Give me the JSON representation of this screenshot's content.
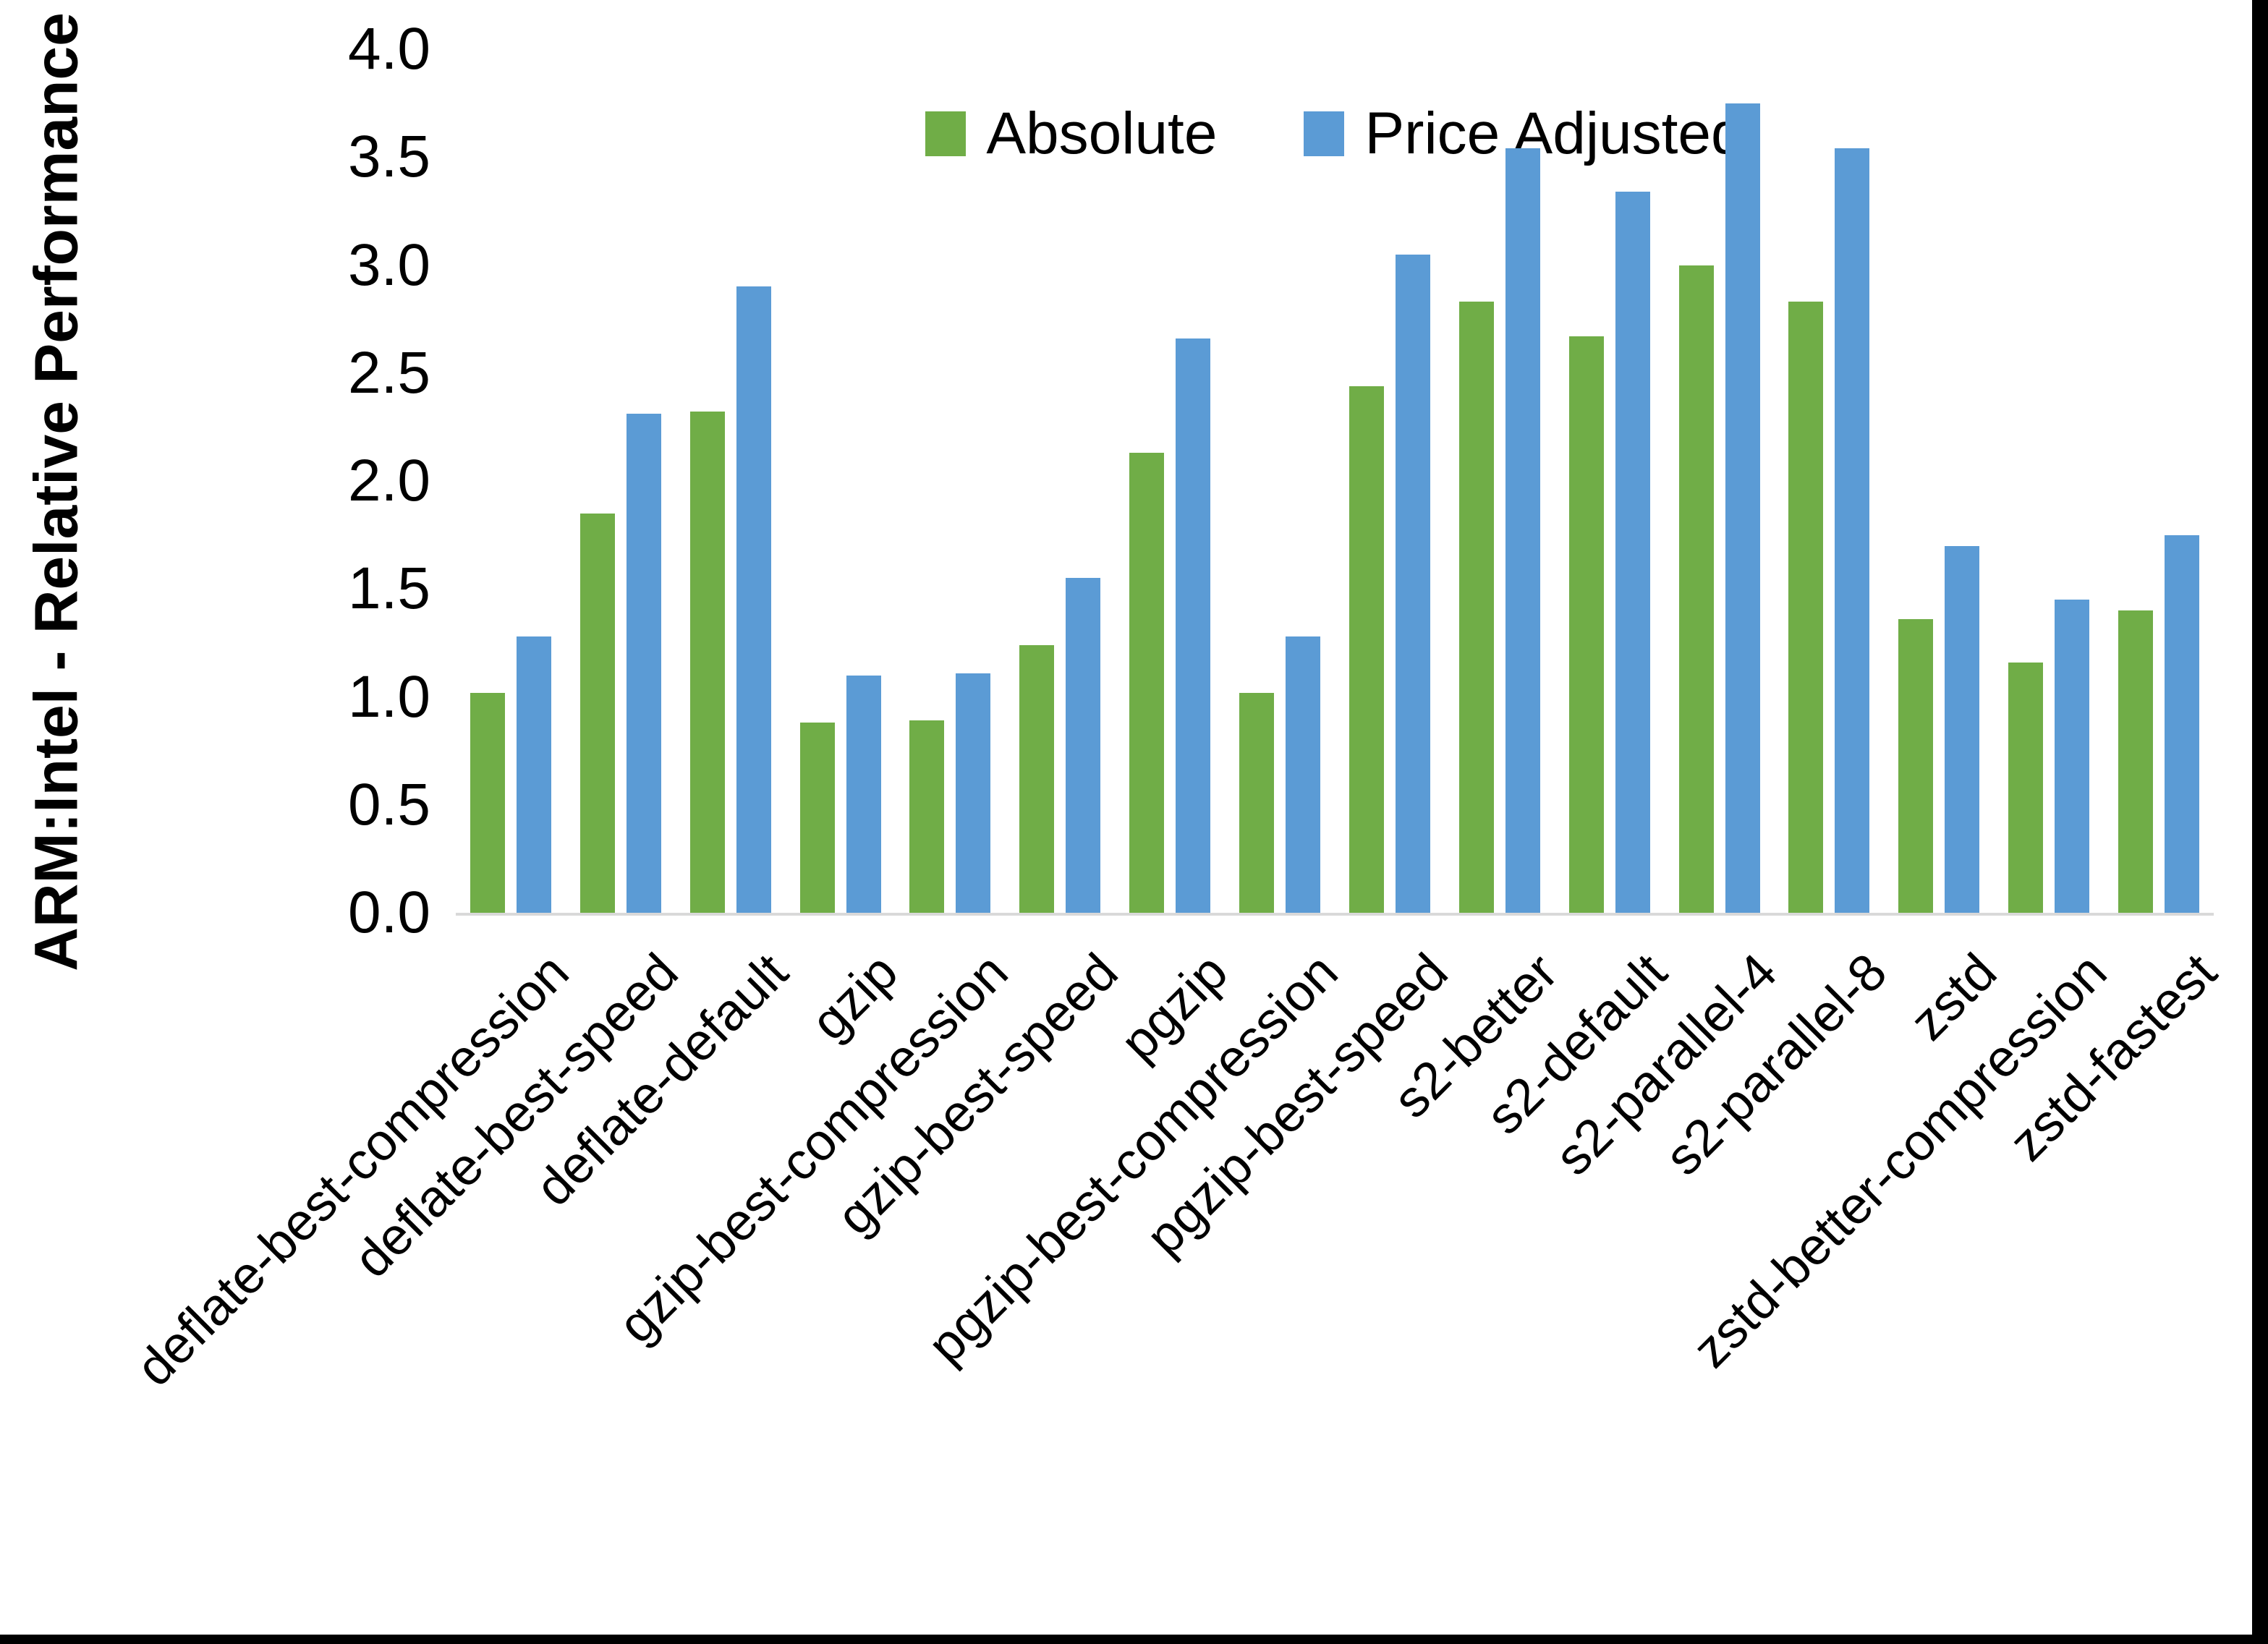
{
  "chart_data": {
    "type": "bar",
    "title": "",
    "ylabel": "ARM:Intel - Relative Performance",
    "xlabel": "",
    "ylim": [
      0.0,
      4.0
    ],
    "ytick_step": 0.5,
    "ytick_labels": [
      "0.0",
      "0.5",
      "1.0",
      "1.5",
      "2.0",
      "2.5",
      "3.0",
      "3.5",
      "4.0"
    ],
    "grid": false,
    "legend_position": "top-center",
    "axis_line_color": "#d9d9d9",
    "background_color": "#ffffff",
    "border_color": "#000000",
    "categories": [
      "deflate-best-compression",
      "deflate-best-speed",
      "deflate-default",
      "gzip",
      "gzip-best-compression",
      "gzip-best-speed",
      "pgzip",
      "pgzip-best-compression",
      "pgzip-best-speed",
      "s2-better",
      "s2-default",
      "s2-parallel-4",
      "s2-parallel-8",
      "zstd",
      "zstd-better-compression",
      "zstd-fastest"
    ],
    "series": [
      {
        "name": "Absolute",
        "color": "#70AD47",
        "values": [
          1.02,
          1.85,
          2.32,
          0.88,
          0.89,
          1.24,
          2.13,
          1.02,
          2.44,
          2.83,
          2.67,
          3.0,
          2.83,
          1.36,
          1.16,
          1.4
        ]
      },
      {
        "name": "Price Adjusted",
        "color": "#5B9BD5",
        "values": [
          1.28,
          2.31,
          2.9,
          1.1,
          1.11,
          1.55,
          2.66,
          1.28,
          3.05,
          3.54,
          3.34,
          3.75,
          3.54,
          1.7,
          1.45,
          1.75
        ]
      }
    ]
  }
}
